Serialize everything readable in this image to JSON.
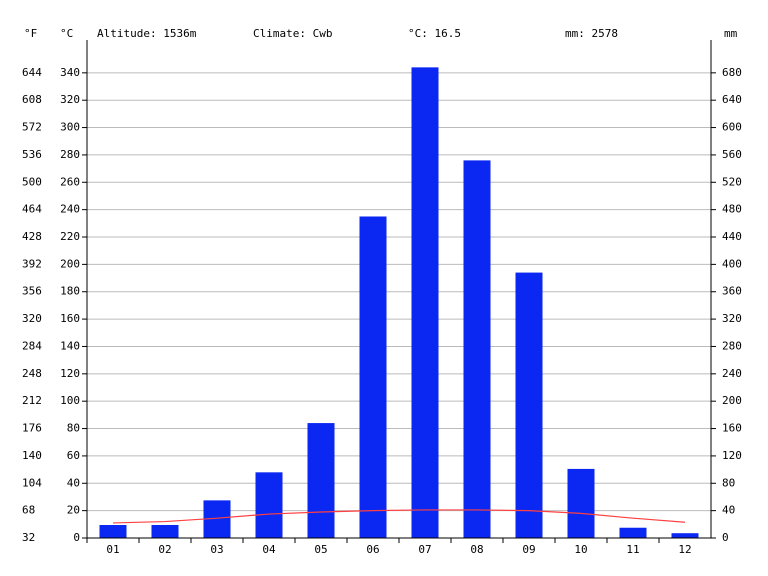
{
  "chart_data": {
    "type": "bar",
    "annotations": [
      "Altitude: 1536m",
      "Climate: Cwb",
      "°C: 16.5",
      "mm: 2578"
    ],
    "y_label": "°C",
    "y2_label": "mm",
    "y3_label": "°F",
    "categories": [
      "01",
      "02",
      "03",
      "04",
      "05",
      "06",
      "07",
      "08",
      "09",
      "10",
      "11",
      "12"
    ],
    "series": [
      {
        "type": "bar",
        "axis": "y2",
        "color": "#0b27f2",
        "values": [
          19,
          19,
          55,
          96,
          168,
          470,
          688,
          552,
          388,
          101,
          15,
          7
        ]
      },
      {
        "type": "line",
        "axis": "y",
        "color": "#ff4040",
        "values": [
          11,
          12,
          14.5,
          17.5,
          19,
          20,
          20.5,
          20.5,
          20,
          18,
          14.5,
          11.5
        ]
      }
    ],
    "ylim": [
      0,
      364
    ],
    "yticks": [
      0,
      20,
      40,
      60,
      80,
      100,
      120,
      140,
      160,
      180,
      200,
      220,
      240,
      260,
      280,
      300,
      320,
      340
    ],
    "y2lim": [
      0,
      728
    ],
    "y2ticks": [
      0,
      40,
      80,
      120,
      160,
      200,
      240,
      280,
      320,
      360,
      400,
      440,
      480,
      520,
      560,
      600,
      640,
      680
    ],
    "y3lim": [
      32,
      687.2
    ],
    "y3ticks": [
      32,
      68,
      104,
      140,
      176,
      212,
      248,
      284,
      320,
      356,
      392,
      428,
      464,
      500,
      536,
      572,
      608,
      644
    ],
    "grid": true,
    "y_color": "#ff2020",
    "y2_color": "#1030ff"
  }
}
